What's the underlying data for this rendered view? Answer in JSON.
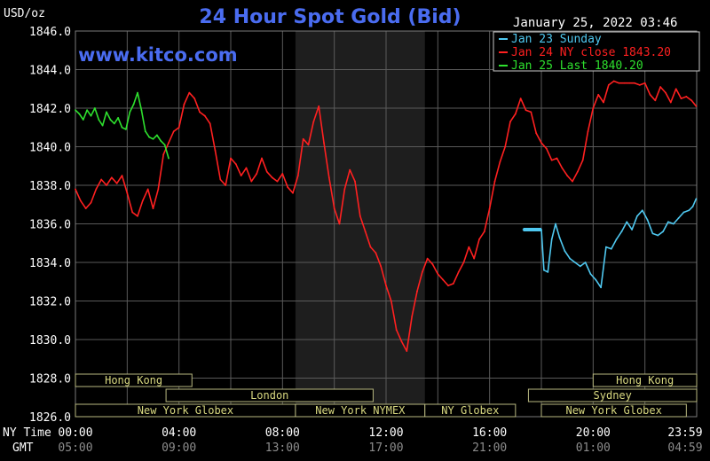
{
  "chart_data": {
    "type": "line",
    "title": "24 Hour Spot Gold (Bid)",
    "units_label": "USD/oz",
    "timestamp": "January 25, 2022 03:46",
    "watermark": "www.kitco.com",
    "ylim": [
      1826.0,
      1846.0
    ],
    "y_ticks": [
      "1846.0",
      "1844.0",
      "1842.0",
      "1840.0",
      "1838.0",
      "1836.0",
      "1834.0",
      "1832.0",
      "1830.0",
      "1828.0",
      "1826.0"
    ],
    "x_row_labels": [
      "NY Time",
      "GMT"
    ],
    "x_ticks_ny": [
      "00:00",
      "04:00",
      "08:00",
      "12:00",
      "16:00",
      "20:00",
      "23:59"
    ],
    "x_ticks_gmt": [
      "05:00",
      "09:00",
      "13:00",
      "17:00",
      "21:00",
      "01:00",
      "04:59"
    ],
    "legend": [
      {
        "label": "Jan 23 Sunday",
        "color": "#4fc8f0"
      },
      {
        "label": "Jan 24 NY close 1843.20",
        "color": "#ff2020"
      },
      {
        "label": "Jan 25 Last 1840.20",
        "color": "#2ee02e"
      }
    ],
    "sessions": [
      {
        "label": "Hong Kong",
        "start_h": 0,
        "end_h": 4.5,
        "row": 0
      },
      {
        "label": "London",
        "start_h": 3.5,
        "end_h": 11.5,
        "row": 1
      },
      {
        "label": "New York Globex",
        "start_h": 0,
        "end_h": 8.5,
        "row": 2
      },
      {
        "label": "New York NYMEX",
        "start_h": 8.5,
        "end_h": 13.5,
        "row": 2
      },
      {
        "label": "NY Globex",
        "start_h": 13.5,
        "end_h": 17.0,
        "row": 2
      },
      {
        "label": "Hong Kong",
        "start_h": 20.0,
        "end_h": 24.0,
        "row": 0
      },
      {
        "label": "Sydney",
        "start_h": 17.5,
        "end_h": 24.0,
        "row": 1
      },
      {
        "label": "New York Globex",
        "start_h": 18.0,
        "end_h": 23.6,
        "row": 2
      }
    ],
    "series": [
      {
        "name": "Jan 23 Sunday",
        "color": "#4fc8f0",
        "x": [
          17.3,
          18.0,
          18.1,
          18.25,
          18.4,
          18.55,
          18.7,
          18.9,
          19.1,
          19.3,
          19.5,
          19.7,
          19.9,
          20.1,
          20.3,
          20.5,
          20.7,
          20.9,
          21.1,
          21.3,
          21.5,
          21.7,
          21.9,
          22.1,
          22.3,
          22.5,
          22.7,
          22.9,
          23.1,
          23.3,
          23.5,
          23.7,
          23.85,
          23.98
        ],
        "y": [
          1835.7,
          1835.7,
          1833.6,
          1833.5,
          1835.2,
          1836.0,
          1835.3,
          1834.6,
          1834.2,
          1834.0,
          1833.8,
          1834.0,
          1833.4,
          1833.1,
          1832.7,
          1834.8,
          1834.7,
          1835.2,
          1835.6,
          1836.1,
          1835.7,
          1836.4,
          1836.7,
          1836.2,
          1835.5,
          1835.4,
          1835.6,
          1836.1,
          1836.0,
          1836.3,
          1836.6,
          1836.7,
          1836.9,
          1837.3
        ]
      },
      {
        "name": "Jan 24 NY close 1843.20",
        "color": "#ff2020",
        "x": [
          0.0,
          0.2,
          0.4,
          0.6,
          0.8,
          1.0,
          1.2,
          1.4,
          1.6,
          1.8,
          2.0,
          2.2,
          2.4,
          2.6,
          2.8,
          3.0,
          3.2,
          3.4,
          3.6,
          3.8,
          4.0,
          4.2,
          4.4,
          4.6,
          4.8,
          5.0,
          5.2,
          5.4,
          5.6,
          5.8,
          6.0,
          6.2,
          6.4,
          6.6,
          6.8,
          7.0,
          7.2,
          7.4,
          7.6,
          7.8,
          8.0,
          8.2,
          8.4,
          8.6,
          8.8,
          9.0,
          9.2,
          9.4,
          9.6,
          9.8,
          10.0,
          10.2,
          10.4,
          10.6,
          10.8,
          11.0,
          11.2,
          11.4,
          11.6,
          11.8,
          12.0,
          12.2,
          12.4,
          12.6,
          12.8,
          13.0,
          13.2,
          13.4,
          13.6,
          13.8,
          14.0,
          14.2,
          14.4,
          14.6,
          14.8,
          15.0,
          15.2,
          15.4,
          15.6,
          15.8,
          16.0,
          16.2,
          16.4,
          16.6,
          16.8,
          17.0,
          17.2,
          17.4,
          17.6,
          17.8,
          18.0,
          18.2,
          18.4,
          18.6,
          18.8,
          19.0,
          19.2,
          19.4,
          19.6,
          19.8,
          20.0,
          20.2,
          20.4,
          20.6,
          20.8,
          21.0,
          21.2,
          21.4,
          21.6,
          21.8,
          22.0,
          22.2,
          22.4,
          22.6,
          22.8,
          23.0,
          23.2,
          23.4,
          23.6,
          23.8,
          23.98
        ],
        "y": [
          1837.8,
          1837.2,
          1836.8,
          1837.1,
          1837.8,
          1838.3,
          1838.0,
          1838.4,
          1838.1,
          1838.5,
          1837.6,
          1836.6,
          1836.4,
          1837.2,
          1837.8,
          1836.8,
          1837.8,
          1839.6,
          1840.2,
          1840.8,
          1841.0,
          1842.2,
          1842.8,
          1842.5,
          1841.8,
          1841.6,
          1841.2,
          1839.8,
          1838.3,
          1838.0,
          1839.4,
          1839.1,
          1838.5,
          1838.9,
          1838.2,
          1838.6,
          1839.4,
          1838.7,
          1838.4,
          1838.2,
          1838.6,
          1837.9,
          1837.6,
          1838.5,
          1840.4,
          1840.1,
          1841.3,
          1842.1,
          1840.2,
          1838.4,
          1836.8,
          1836.0,
          1837.8,
          1838.8,
          1838.2,
          1836.4,
          1835.6,
          1834.8,
          1834.5,
          1833.8,
          1832.8,
          1832.0,
          1830.5,
          1829.9,
          1829.4,
          1831.2,
          1832.5,
          1833.5,
          1834.2,
          1833.9,
          1833.4,
          1833.1,
          1832.8,
          1832.9,
          1833.5,
          1834.0,
          1834.8,
          1834.2,
          1835.2,
          1835.6,
          1836.8,
          1838.2,
          1839.2,
          1840.0,
          1841.3,
          1841.7,
          1842.5,
          1841.9,
          1841.8,
          1840.7,
          1840.2,
          1839.9,
          1839.3,
          1839.4,
          1838.9,
          1838.5,
          1838.2,
          1838.7,
          1839.3,
          1840.8,
          1842.0,
          1842.7,
          1842.3,
          1843.2,
          1843.4,
          1843.3,
          1843.3,
          1843.3,
          1843.3,
          1843.2,
          1843.3,
          1842.7,
          1842.4,
          1843.1,
          1842.8,
          1842.3,
          1843.0,
          1842.5,
          1842.6,
          1842.4,
          1842.1
        ]
      },
      {
        "name": "Jan 25 Last 1840.20",
        "color": "#2ee02e",
        "x": [
          0.0,
          0.15,
          0.3,
          0.45,
          0.6,
          0.75,
          0.9,
          1.05,
          1.2,
          1.35,
          1.5,
          1.65,
          1.8,
          1.95,
          2.1,
          2.25,
          2.4,
          2.55,
          2.7,
          2.85,
          3.0,
          3.15,
          3.3,
          3.45,
          3.6
        ],
        "y": [
          1841.9,
          1841.7,
          1841.4,
          1841.9,
          1841.6,
          1842.0,
          1841.4,
          1841.1,
          1841.8,
          1841.4,
          1841.2,
          1841.5,
          1841.0,
          1840.9,
          1841.8,
          1842.2,
          1842.8,
          1841.9,
          1840.8,
          1840.5,
          1840.4,
          1840.6,
          1840.3,
          1840.1,
          1839.4
        ]
      }
    ]
  }
}
